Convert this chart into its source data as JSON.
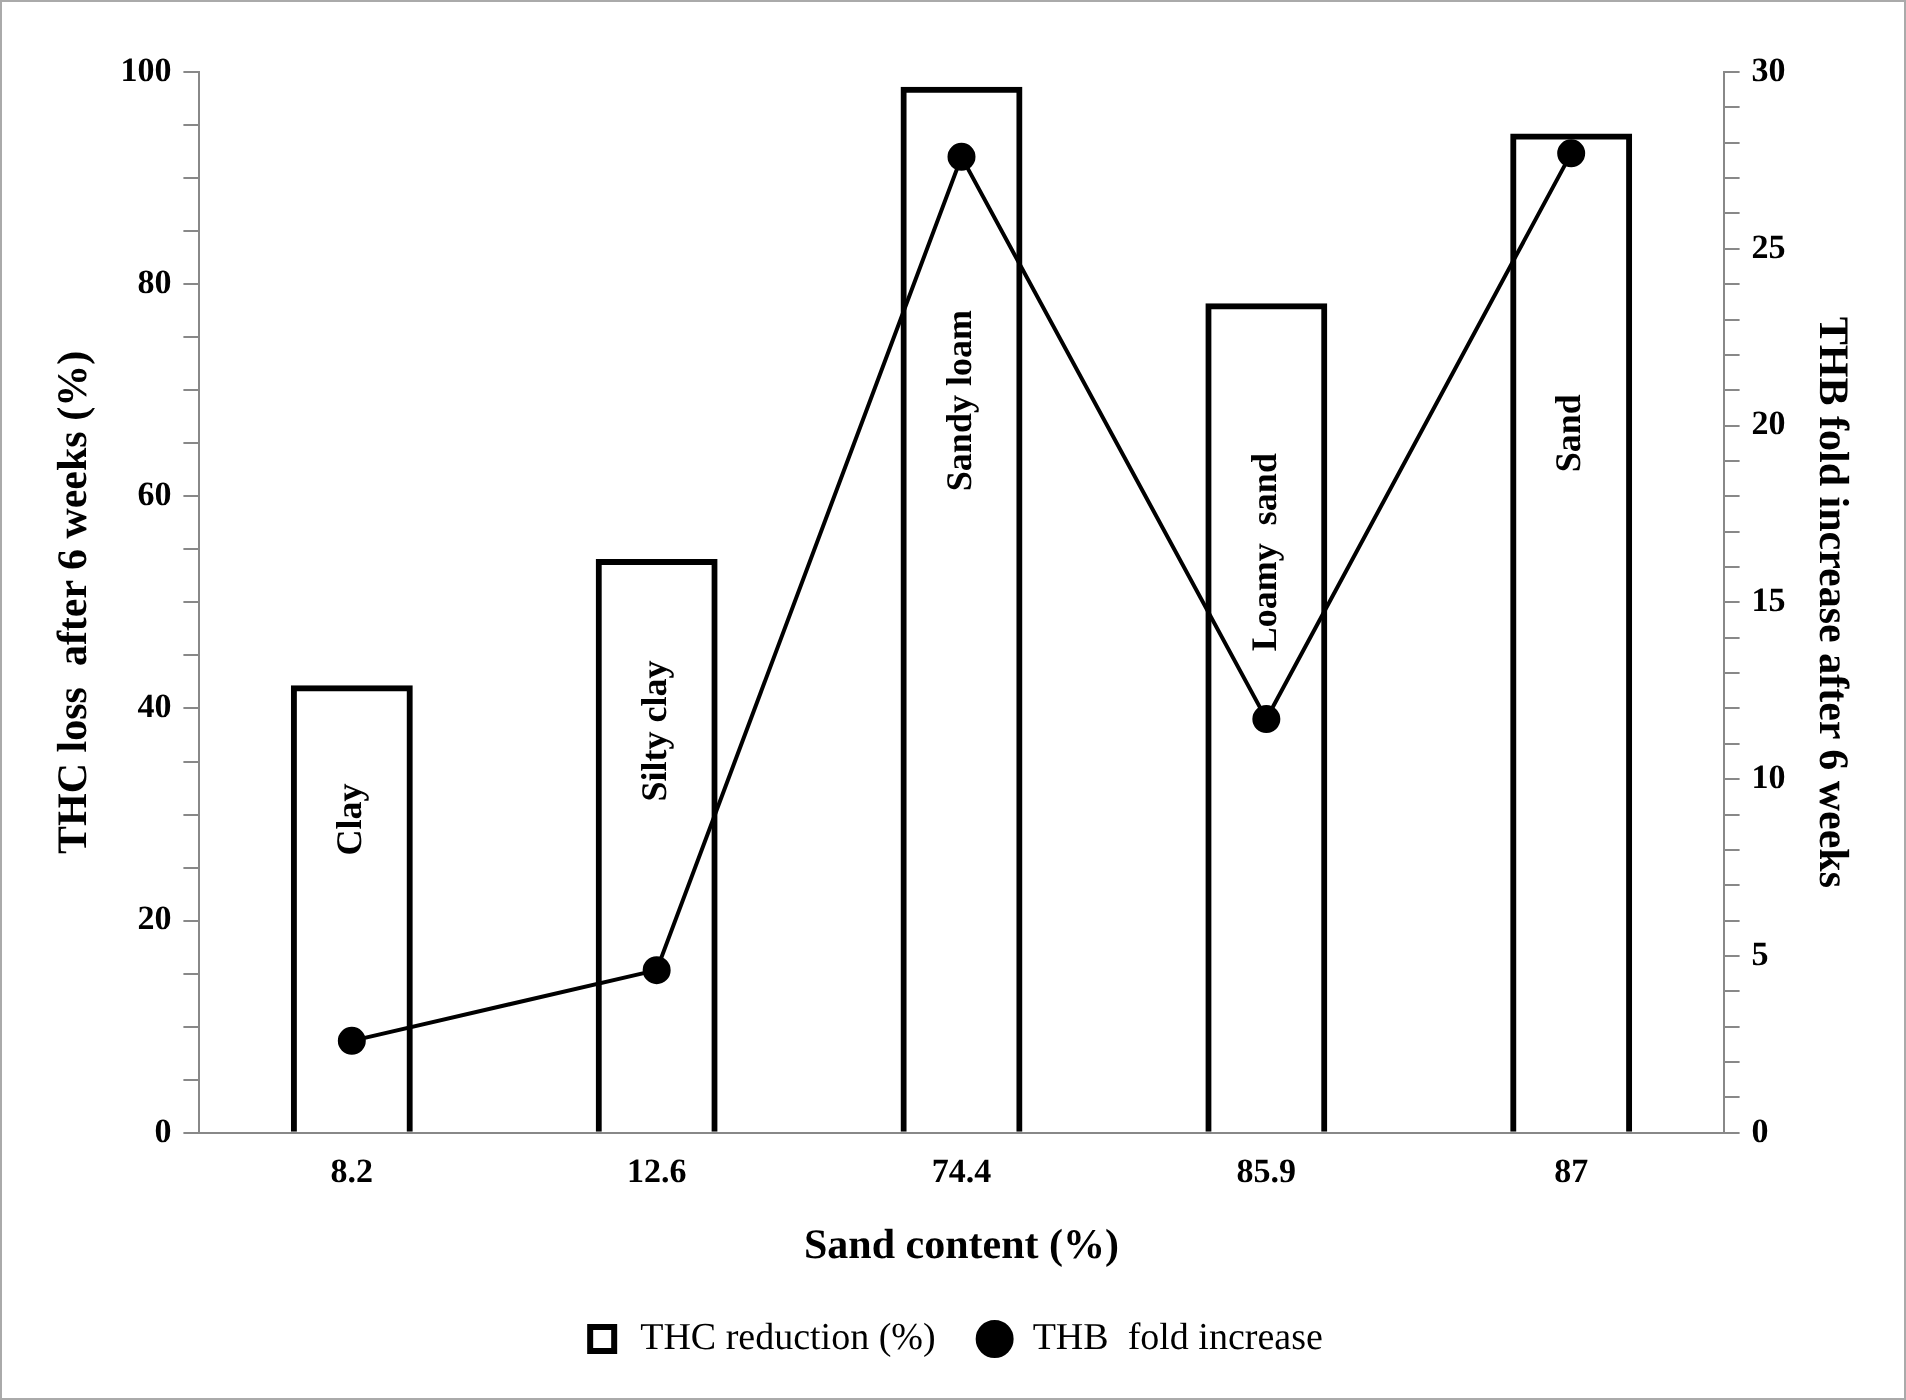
{
  "chart_data": {
    "type": "bar",
    "xlabel": "Sand content (%)",
    "ylabel": "THC loss  after 6 weeks (%)",
    "y2label": "THB fold increase after 6 weeks",
    "categories": [
      "8.2",
      "12.6",
      "74.4",
      "85.9",
      "87"
    ],
    "series": [
      {
        "name": "THC reduction (%)",
        "color": "#000000",
        "values": [
          42.2,
          54.1,
          98.6,
          78.2,
          94.2
        ]
      },
      {
        "name": "THB  fold increase",
        "type": "line",
        "axis": "y2",
        "color": "#000000",
        "values": [
          2.6,
          4.6,
          27.6,
          11.7,
          27.7
        ]
      }
    ],
    "ylim": [
      0,
      100
    ],
    "yticks": [
      0,
      {
        "value": 5,
        "label": null
      },
      {
        "value": 10,
        "label": null
      },
      {
        "value": 15,
        "label": null
      },
      20,
      {
        "value": 25,
        "label": null
      },
      {
        "value": 30,
        "label": null
      },
      {
        "value": 35,
        "label": null
      },
      40,
      {
        "value": 45,
        "label": null
      },
      {
        "value": 50,
        "label": null
      },
      {
        "value": 55,
        "label": null
      },
      60,
      {
        "value": 65,
        "label": null
      },
      {
        "value": 70,
        "label": null
      },
      {
        "value": 75,
        "label": null
      },
      80,
      {
        "value": 85,
        "label": null
      },
      {
        "value": 90,
        "label": null
      },
      {
        "value": 95,
        "label": null
      },
      100
    ],
    "y2lim": [
      0,
      30
    ],
    "y2ticks": [
      0,
      {
        "value": 1,
        "label": null
      },
      {
        "value": 2,
        "label": null
      },
      {
        "value": 3,
        "label": null
      },
      {
        "value": 4,
        "label": null
      },
      5,
      {
        "value": 6,
        "label": null
      },
      {
        "value": 7,
        "label": null
      },
      {
        "value": 8,
        "label": null
      },
      {
        "value": 9,
        "label": null
      },
      10,
      {
        "value": 11,
        "label": null
      },
      {
        "value": 12,
        "label": null
      },
      {
        "value": 13,
        "label": null
      },
      {
        "value": 14,
        "label": null
      },
      15,
      {
        "value": 16,
        "label": null
      },
      {
        "value": 17,
        "label": null
      },
      {
        "value": 18,
        "label": null
      },
      {
        "value": 19,
        "label": null
      },
      20,
      {
        "value": 21,
        "label": null
      },
      {
        "value": 22,
        "label": null
      },
      {
        "value": 23,
        "label": null
      },
      {
        "value": 24,
        "label": null
      },
      25,
      {
        "value": 26,
        "label": null
      },
      {
        "value": 27,
        "label": null
      },
      {
        "value": 28,
        "label": null
      },
      {
        "value": 29,
        "label": null
      },
      30
    ],
    "annotations": [
      "Clay",
      "Silty clay",
      "Sandy loam",
      "Loamy  sand",
      "Sand"
    ],
    "grid": false,
    "legend": "bottom",
    "marker": "circle",
    "line_style": "solid"
  }
}
